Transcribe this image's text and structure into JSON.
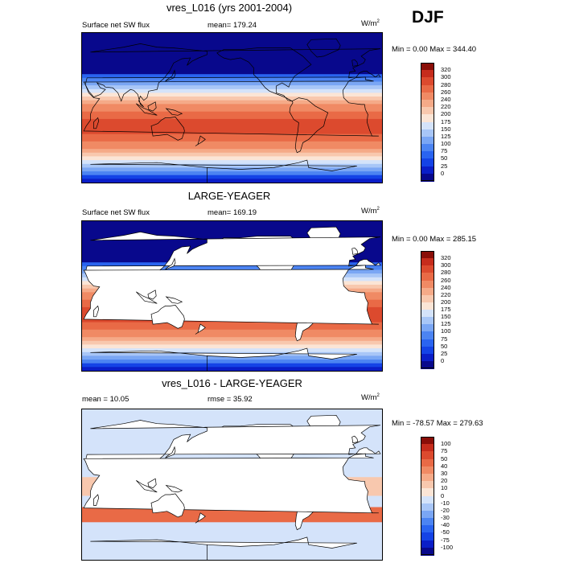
{
  "season": "DJF",
  "palettes": {
    "abs": [
      "#08088c",
      "#0a1ec8",
      "#1443e6",
      "#2a64f0",
      "#4c84f2",
      "#7aa6f4",
      "#a8c6f7",
      "#d4e3fa",
      "#fbe5d6",
      "#f8c8ae",
      "#f5aa88",
      "#f08a64",
      "#e96a46",
      "#dc4a2e",
      "#c62c1c",
      "#8a0e08"
    ],
    "diff": [
      "#08088c",
      "#0a1ec8",
      "#1443e6",
      "#2a64f0",
      "#4c84f2",
      "#7aa6f4",
      "#a8c6f7",
      "#d4e3fa",
      "#fbe5d6",
      "#f8c8ae",
      "#f5aa88",
      "#f08a64",
      "#e96a46",
      "#dc4a2e",
      "#c62c1c",
      "#8a0e08"
    ]
  },
  "panels": [
    {
      "title": "vres_L016 (yrs 2001-2004)",
      "left_label": "Surface net SW flux",
      "mid_label": "mean= 179.24",
      "units_base": "W/m",
      "units_exp": "2",
      "minmax": "Min =   0.00 Max = 344.40",
      "colorbar_labels": [
        "320",
        "300",
        "280",
        "260",
        "240",
        "220",
        "200",
        "175",
        "150",
        "125",
        "100",
        "75",
        "50",
        "25",
        "0"
      ],
      "masked_land": false,
      "palette": "abs"
    },
    {
      "title": "LARGE-YEAGER",
      "left_label": "Surface net SW flux",
      "mid_label": "mean= 169.19",
      "units_base": "W/m",
      "units_exp": "2",
      "minmax": "Min =   0.00 Max = 285.15",
      "colorbar_labels": [
        "320",
        "300",
        "280",
        "260",
        "240",
        "220",
        "200",
        "175",
        "150",
        "125",
        "100",
        "75",
        "50",
        "25",
        "0"
      ],
      "masked_land": true,
      "palette": "abs"
    },
    {
      "title": "vres_L016 - LARGE-YEAGER",
      "left_label": "mean =  10.05",
      "mid_label": "rmse =  35.92",
      "units_base": "W/m",
      "units_exp": "2",
      "minmax": "Min = -78.57 Max = 279.63",
      "colorbar_labels": [
        "100",
        "75",
        "50",
        "40",
        "30",
        "20",
        "10",
        "0",
        "-10",
        "-20",
        "-30",
        "-40",
        "-50",
        "-75",
        "-100"
      ],
      "masked_land": true,
      "palette": "diff"
    }
  ]
}
